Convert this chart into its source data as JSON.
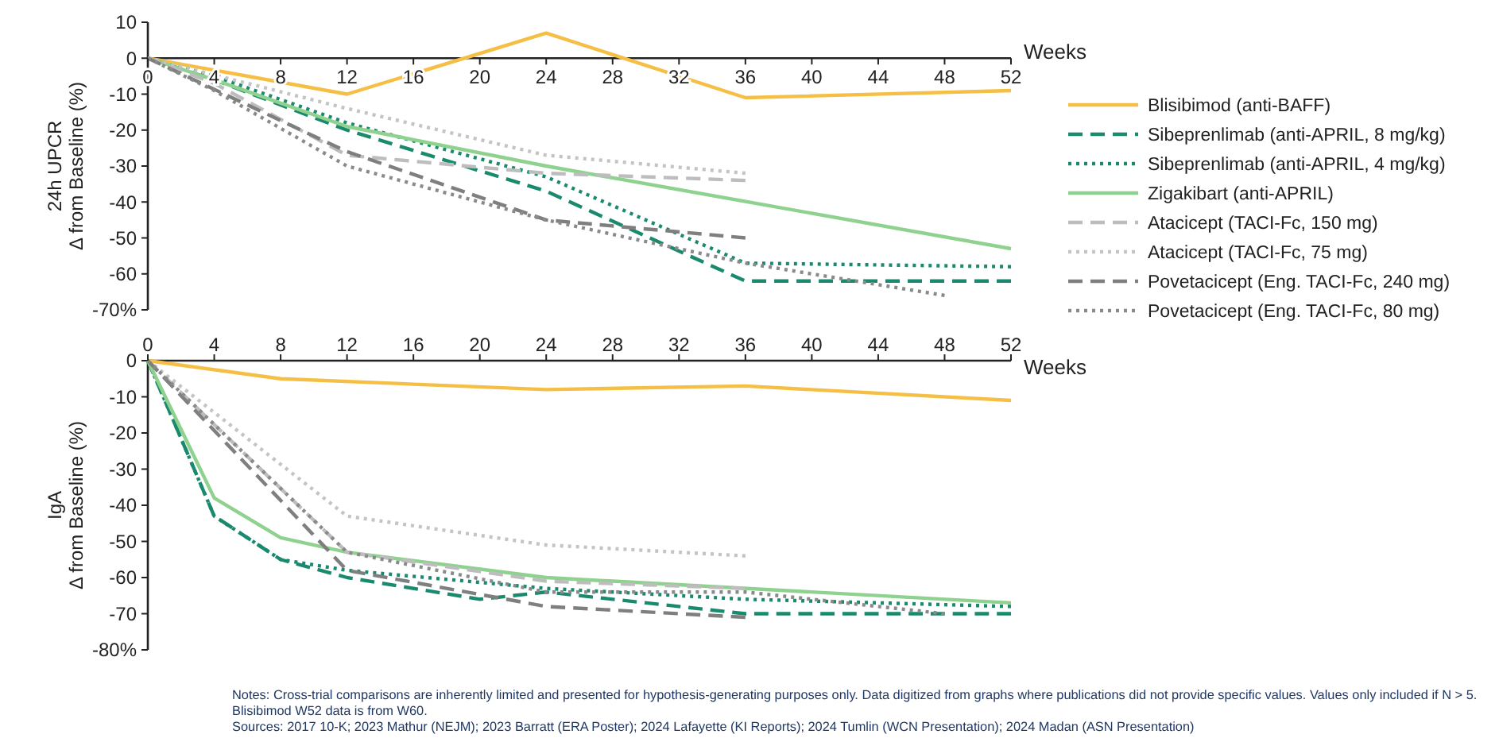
{
  "chart_data": [
    {
      "type": "line",
      "ylabel": "24h UPCR\nΔ from Baseline (%)",
      "xlabel": "Weeks",
      "xlim": [
        0,
        52
      ],
      "xticks": [
        0,
        4,
        8,
        12,
        16,
        20,
        24,
        28,
        32,
        36,
        40,
        44,
        48,
        52
      ],
      "ylim": [
        -70,
        10
      ],
      "yticks": [
        {
          "value": -70,
          "label": "-70%"
        },
        -60,
        -50,
        -40,
        -30,
        -20,
        -10,
        0,
        10
      ],
      "grid": false,
      "legend": "right",
      "series": [
        {
          "name": "Blisibimod (anti-BAFF)",
          "color": "#f5bf45",
          "line_style": "solid",
          "x": [
            0,
            12,
            24,
            36,
            52
          ],
          "values": [
            0,
            -10,
            7,
            -11,
            -9
          ]
        },
        {
          "name": "Sibeprenlimab (anti-APRIL, 8 mg/kg)",
          "color": "#1a8a6e",
          "line_style": "dashed",
          "x": [
            0,
            4,
            12,
            24,
            36,
            52
          ],
          "values": [
            0,
            -6,
            -20,
            -37,
            -62,
            -62
          ]
        },
        {
          "name": "Sibeprenlimab (anti-APRIL, 4 mg/kg)",
          "color": "#1a8a6e",
          "line_style": "dotted",
          "x": [
            0,
            4,
            12,
            24,
            36,
            52
          ],
          "values": [
            0,
            -5,
            -18,
            -33,
            -57,
            -58
          ]
        },
        {
          "name": "Zigakibart (anti-APRIL)",
          "color": "#8fd18f",
          "line_style": "solid",
          "x": [
            0,
            4,
            12,
            24,
            52
          ],
          "values": [
            0,
            -6,
            -19,
            -30,
            -53
          ]
        },
        {
          "name": "Atacicept (TACI-Fc, 150 mg)",
          "color": "#bdbdbd",
          "line_style": "dashed",
          "x": [
            0,
            4,
            12,
            24,
            36
          ],
          "values": [
            0,
            -7,
            -27,
            -32,
            -34
          ]
        },
        {
          "name": "Atacicept (TACI-Fc, 75 mg)",
          "color": "#c4c4c4",
          "line_style": "dotted",
          "x": [
            0,
            12,
            24,
            36
          ],
          "values": [
            0,
            -14,
            -27,
            -32
          ]
        },
        {
          "name": "Povetacicept (Eng. TACI-Fc, 240 mg)",
          "color": "#7f7f7f",
          "line_style": "dashed",
          "x": [
            0,
            12,
            24,
            36
          ],
          "values": [
            0,
            -26,
            -45,
            -50
          ]
        },
        {
          "name": "Povetacicept (Eng. TACI-Fc, 80 mg)",
          "color": "#8a8a8a",
          "line_style": "dotted",
          "x": [
            0,
            4,
            12,
            24,
            36,
            48
          ],
          "values": [
            0,
            -9,
            -30,
            -45,
            -57,
            -66
          ]
        }
      ]
    },
    {
      "type": "line",
      "ylabel": "IgA\nΔ from Baseline (%)",
      "xlabel": "Weeks",
      "xlim": [
        0,
        52
      ],
      "xticks": [
        0,
        4,
        8,
        12,
        16,
        20,
        24,
        28,
        32,
        36,
        40,
        44,
        48,
        52
      ],
      "ylim": [
        -80,
        0
      ],
      "yticks": [
        {
          "value": -80,
          "label": "-80%"
        },
        -70,
        -60,
        -50,
        -40,
        -30,
        -20,
        -10,
        0
      ],
      "grid": false,
      "legend": false,
      "series": [
        {
          "color": "#f5bf45",
          "line_style": "solid",
          "x": [
            0,
            8,
            24,
            36,
            52
          ],
          "values": [
            0,
            -5,
            -8,
            -7,
            -11
          ]
        },
        {
          "color": "#1a8a6e",
          "line_style": "dashed",
          "x": [
            0,
            4,
            8,
            12,
            20,
            24,
            36,
            52
          ],
          "values": [
            0,
            -43,
            -55,
            -60,
            -66,
            -64,
            -70,
            -70
          ]
        },
        {
          "color": "#1a8a6e",
          "line_style": "dotted",
          "x": [
            0,
            4,
            8,
            12,
            24,
            36,
            52
          ],
          "values": [
            0,
            -43,
            -55,
            -58,
            -63,
            -66,
            -68
          ]
        },
        {
          "color": "#8fd18f",
          "line_style": "solid",
          "x": [
            0,
            4,
            8,
            12,
            24,
            52
          ],
          "values": [
            0,
            -38,
            -49,
            -53,
            -60,
            -67
          ]
        },
        {
          "color": "#bdbdbd",
          "line_style": "dashed",
          "x": [
            0,
            12,
            24,
            36
          ],
          "values": [
            0,
            -53,
            -61,
            -63
          ]
        },
        {
          "color": "#c4c4c4",
          "line_style": "dotted",
          "x": [
            0,
            12,
            24,
            36
          ],
          "values": [
            0,
            -43,
            -51,
            -54
          ]
        },
        {
          "color": "#7f7f7f",
          "line_style": "dashed",
          "x": [
            0,
            12,
            24,
            36
          ],
          "values": [
            0,
            -58,
            -68,
            -71
          ]
        },
        {
          "color": "#8a8a8a",
          "line_style": "dotted",
          "x": [
            0,
            12,
            24,
            36,
            48
          ],
          "values": [
            0,
            -53,
            -64,
            -64,
            -70
          ]
        }
      ],
      "annotations": [
        "Notes:  Cross-trial comparisons are inherently limited and presented for hypothesis-generating purposes only. Data digitized from graphs where publications did not provide specific values.  Values only included if N > 5. Blisibimod W52 data is from W60.",
        "Sources: 2017 10-K; 2023 Mathur (NEJM); 2023 Barratt (ERA Poster); 2024 Lafayette (KI Reports); 2024 Tumlin (WCN Presentation); 2024 Madan (ASN Presentation)"
      ]
    }
  ]
}
